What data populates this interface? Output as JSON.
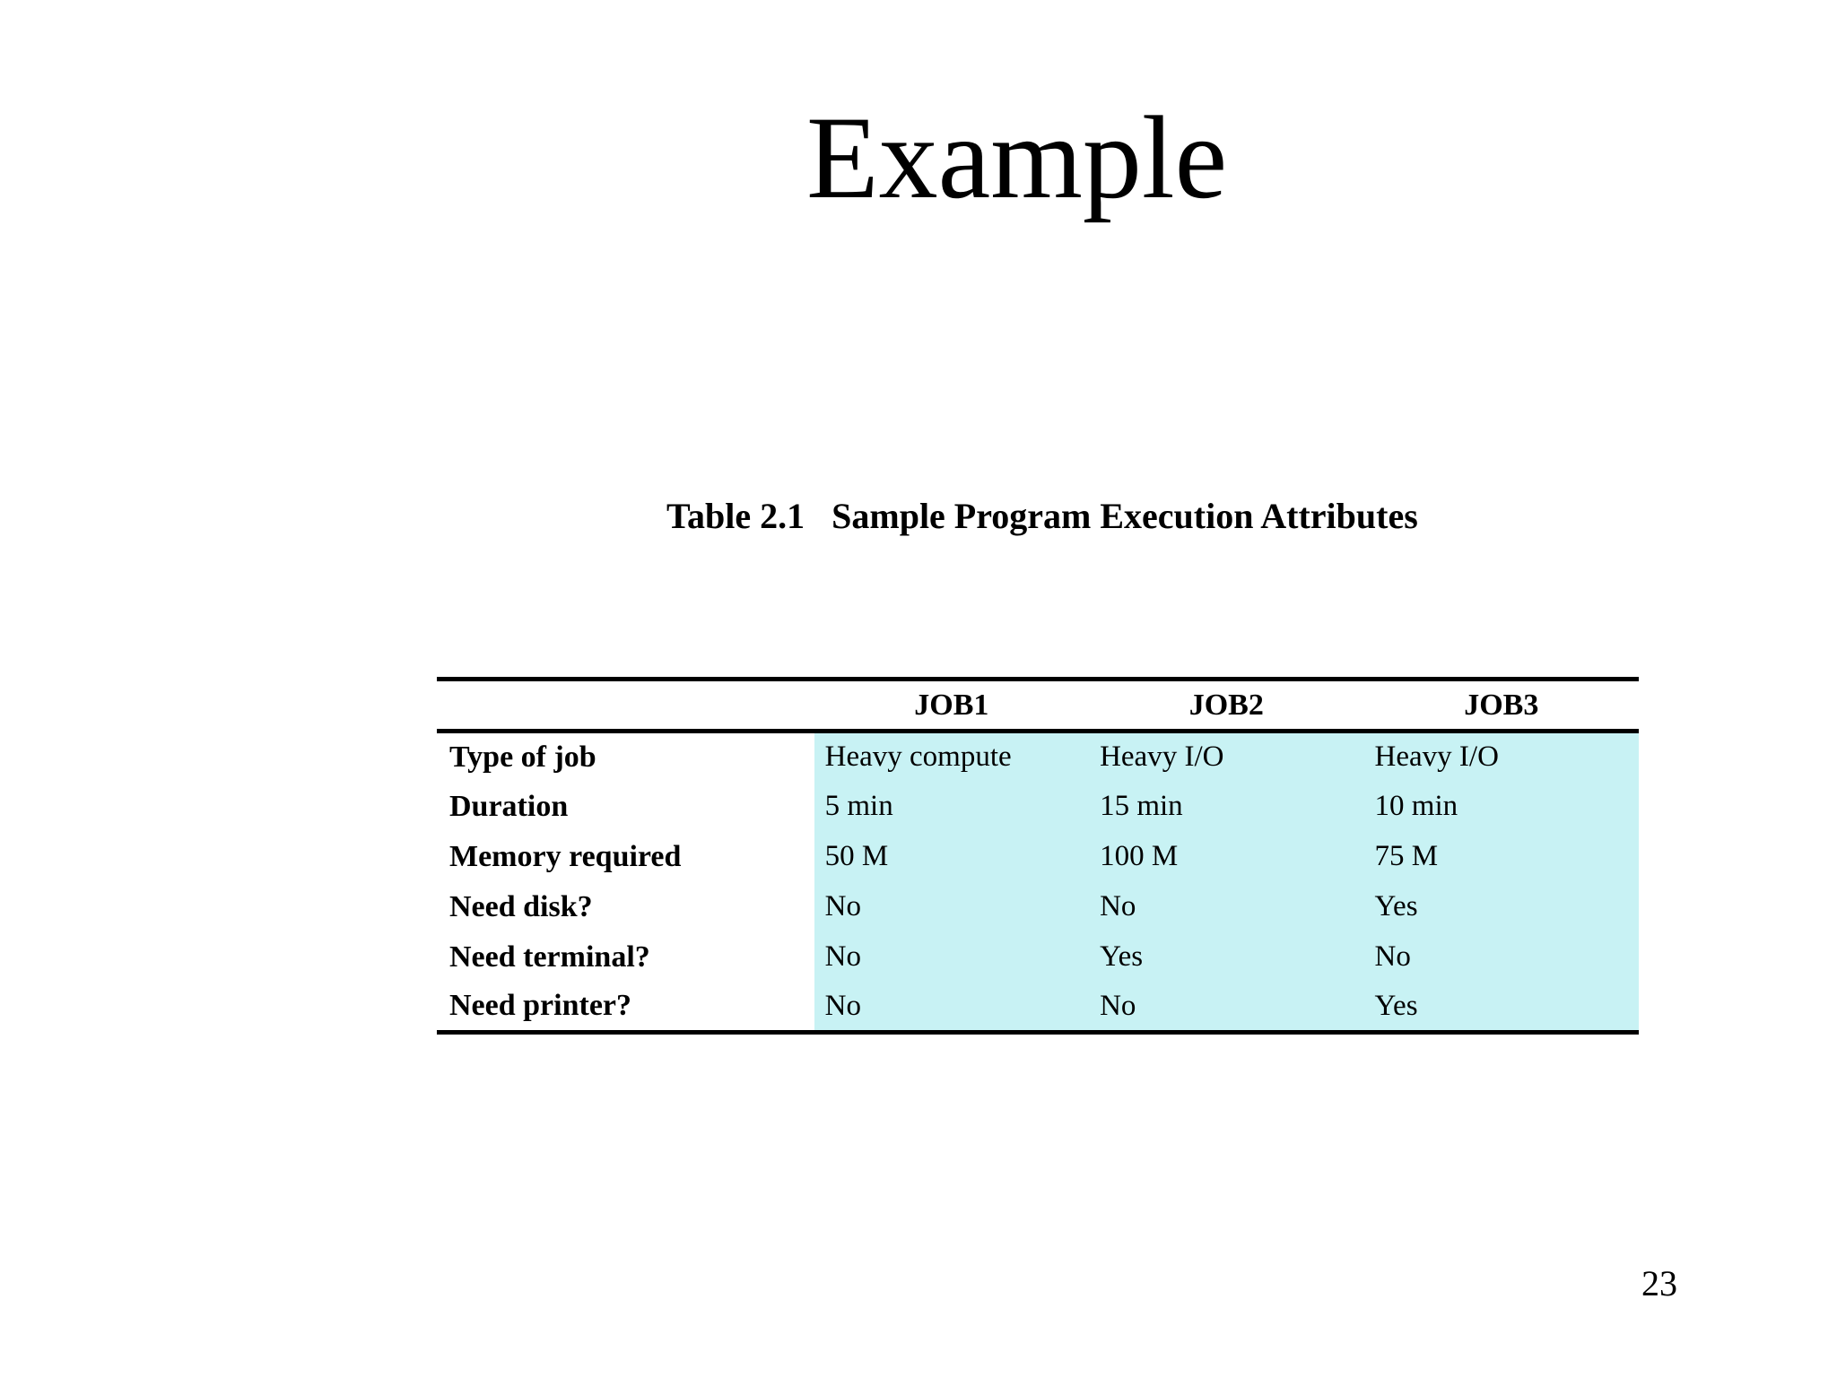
{
  "slide": {
    "title": "Example",
    "page_number": "23"
  },
  "table": {
    "caption_label": "Table 2.1",
    "caption_title": "Sample Program Execution Attributes",
    "highlight_color": "#c8f2f4",
    "text_color": "#000000",
    "columns": [
      "JOB1",
      "JOB2",
      "JOB3"
    ],
    "rows": [
      {
        "label": "Type of job",
        "values": [
          "Heavy compute",
          "Heavy I/O",
          "Heavy I/O"
        ]
      },
      {
        "label": "Duration",
        "values": [
          "5 min",
          "15 min",
          "10 min"
        ]
      },
      {
        "label": "Memory required",
        "values": [
          "50 M",
          "100 M",
          "75 M"
        ]
      },
      {
        "label": "Need disk?",
        "values": [
          "No",
          "No",
          "Yes"
        ]
      },
      {
        "label": "Need terminal?",
        "values": [
          "No",
          "Yes",
          "No"
        ]
      },
      {
        "label": "Need printer?",
        "values": [
          "No",
          "No",
          "Yes"
        ]
      }
    ]
  }
}
